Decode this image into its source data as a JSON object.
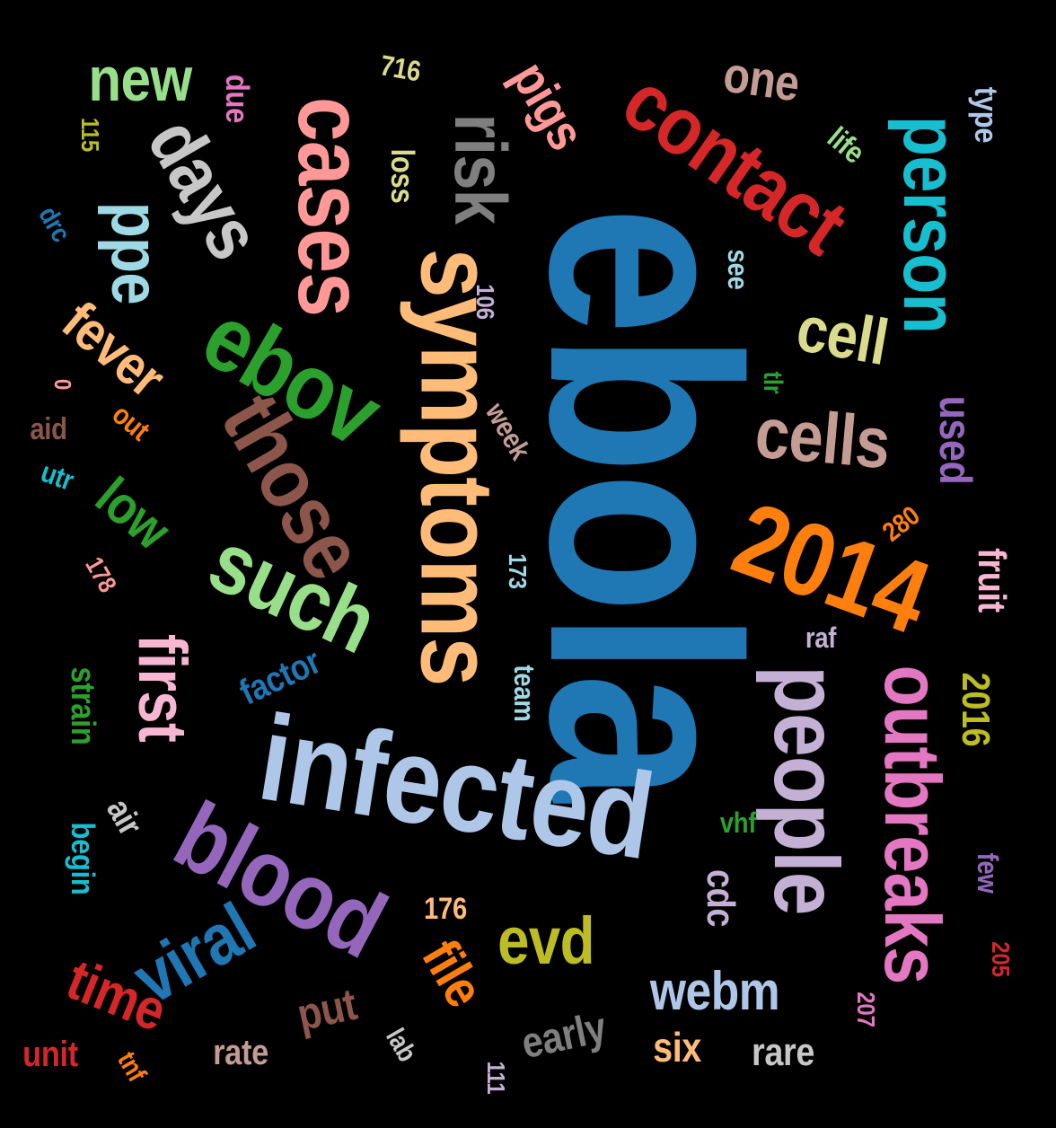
{
  "palette": {
    "background": "#000000",
    "blue": "#1f77b4",
    "light_blue": "#aec7e8",
    "orange": "#ff7f0e",
    "light_orange": "#ffbb78",
    "green": "#2ca02c",
    "light_green": "#98df8a",
    "red": "#d62728",
    "pink": "#ff9896",
    "purple": "#9467bd",
    "lavender": "#c5b0d5",
    "brown": "#8c564b",
    "tan": "#c49c94",
    "magenta": "#e377c2",
    "light_pink": "#f7b6d2",
    "gray": "#7f7f7f",
    "light_gray": "#c7c7c7",
    "olive": "#bcbd22",
    "khaki": "#dbdb8d",
    "cyan": "#17becf",
    "light_cyan": "#9edae5"
  },
  "words": [
    {
      "text": "ebola",
      "color": "#1f77b4",
      "weight": 100
    },
    {
      "text": "infected",
      "color": "#aec7e8",
      "weight": 60
    },
    {
      "text": "symptoms",
      "color": "#ffbb78",
      "weight": 55
    },
    {
      "text": "contact",
      "color": "#d62728",
      "weight": 50
    },
    {
      "text": "2014",
      "color": "#ff7f0e",
      "weight": 50
    },
    {
      "text": "cases",
      "color": "#ff9896",
      "weight": 48
    },
    {
      "text": "ebov",
      "color": "#2ca02c",
      "weight": 48
    },
    {
      "text": "blood",
      "color": "#9467bd",
      "weight": 48
    },
    {
      "text": "people",
      "color": "#c5b0d5",
      "weight": 46
    },
    {
      "text": "outbreaks",
      "color": "#e377c2",
      "weight": 44
    },
    {
      "text": "person",
      "color": "#17becf",
      "weight": 42
    },
    {
      "text": "those",
      "color": "#8c564b",
      "weight": 42
    },
    {
      "text": "such",
      "color": "#98df8a",
      "weight": 42
    },
    {
      "text": "days",
      "color": "#c7c7c7",
      "weight": 38
    },
    {
      "text": "risk",
      "color": "#7f7f7f",
      "weight": 36
    },
    {
      "text": "cells",
      "color": "#c49c94",
      "weight": 36
    },
    {
      "text": "cell",
      "color": "#dbdb8d",
      "weight": 32
    },
    {
      "text": "ppe",
      "color": "#9edae5",
      "weight": 32
    },
    {
      "text": "first",
      "color": "#f7b6d2",
      "weight": 32
    },
    {
      "text": "viral",
      "color": "#1f77b4",
      "weight": 32
    },
    {
      "text": "evd",
      "color": "#bcbd22",
      "weight": 30
    },
    {
      "text": "new",
      "color": "#98df8a",
      "weight": 28
    },
    {
      "text": "fever",
      "color": "#ffbb78",
      "weight": 28
    },
    {
      "text": "time",
      "color": "#d62728",
      "weight": 28
    },
    {
      "text": "low",
      "color": "#2ca02c",
      "weight": 26
    },
    {
      "text": "file",
      "color": "#ff7f0e",
      "weight": 26
    },
    {
      "text": "webm",
      "color": "#aec7e8",
      "weight": 26
    },
    {
      "text": "one",
      "color": "#c49c94",
      "weight": 24
    },
    {
      "text": "pigs",
      "color": "#ff9896",
      "weight": 24
    },
    {
      "text": "used",
      "color": "#9467bd",
      "weight": 24
    },
    {
      "text": "fruit",
      "color": "#f7b6d2",
      "weight": 22
    },
    {
      "text": "2016",
      "color": "#bcbd22",
      "weight": 22
    },
    {
      "text": "early",
      "color": "#7f7f7f",
      "weight": 22
    },
    {
      "text": "six",
      "color": "#ffbb78",
      "weight": 22
    },
    {
      "text": "rare",
      "color": "#c7c7c7",
      "weight": 22
    },
    {
      "text": "put",
      "color": "#8c564b",
      "weight": 22
    },
    {
      "text": "cdc",
      "color": "#c5b0d5",
      "weight": 20
    },
    {
      "text": "factor",
      "color": "#1f77b4",
      "weight": 20
    },
    {
      "text": "strain",
      "color": "#2ca02c",
      "weight": 20
    },
    {
      "text": "air",
      "color": "#c7c7c7",
      "weight": 20
    },
    {
      "text": "begin",
      "color": "#17becf",
      "weight": 20
    },
    {
      "text": "unit",
      "color": "#d62728",
      "weight": 20
    },
    {
      "text": "rate",
      "color": "#c49c94",
      "weight": 20
    },
    {
      "text": "type",
      "color": "#aec7e8",
      "weight": 20
    },
    {
      "text": "loss",
      "color": "#dbdb8d",
      "weight": 20
    },
    {
      "text": "due",
      "color": "#e377c2",
      "weight": 18
    },
    {
      "text": "life",
      "color": "#98df8a",
      "weight": 18
    },
    {
      "text": "see",
      "color": "#9edae5",
      "weight": 18
    },
    {
      "text": "week",
      "color": "#c49c94",
      "weight": 18
    },
    {
      "text": "team",
      "color": "#9edae5",
      "weight": 18
    },
    {
      "text": "raf",
      "color": "#c5b0d5",
      "weight": 18
    },
    {
      "text": "tlr",
      "color": "#2ca02c",
      "weight": 18
    },
    {
      "text": "vhf",
      "color": "#2ca02c",
      "weight": 18
    },
    {
      "text": "few",
      "color": "#9467bd",
      "weight": 18
    },
    {
      "text": "lab",
      "color": "#c7c7c7",
      "weight": 18
    },
    {
      "text": "out",
      "color": "#ff7f0e",
      "weight": 18
    },
    {
      "text": "aid",
      "color": "#8c564b",
      "weight": 18
    },
    {
      "text": "utr",
      "color": "#17becf",
      "weight": 18
    },
    {
      "text": "drc",
      "color": "#1f77b4",
      "weight": 16
    },
    {
      "text": "tnf",
      "color": "#ff7f0e",
      "weight": 16
    },
    {
      "text": "716",
      "color": "#dbdb8d",
      "weight": 16
    },
    {
      "text": "115",
      "color": "#bcbd22",
      "weight": 16
    },
    {
      "text": "106",
      "color": "#c5b0d5",
      "weight": 16
    },
    {
      "text": "280",
      "color": "#ff7f0e",
      "weight": 16
    },
    {
      "text": "173",
      "color": "#9edae5",
      "weight": 16
    },
    {
      "text": "178",
      "color": "#ff9896",
      "weight": 16
    },
    {
      "text": "176",
      "color": "#ffbb78",
      "weight": 16
    },
    {
      "text": "205",
      "color": "#d62728",
      "weight": 16
    },
    {
      "text": "207",
      "color": "#e377c2",
      "weight": 16
    },
    {
      "text": "111",
      "color": "#c5b0d5",
      "weight": 16
    },
    {
      "text": "0",
      "color": "#ff9896",
      "weight": 14
    }
  ]
}
